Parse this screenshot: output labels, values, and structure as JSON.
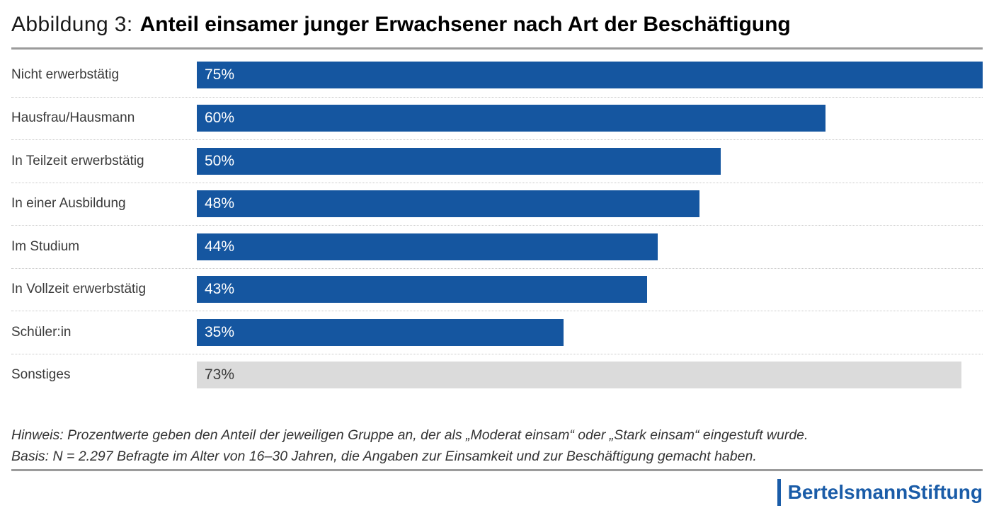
{
  "header": {
    "figure_label": "Abbildung 3:",
    "title": "Anteil einsamer junger Erwachsener nach Art der Beschäftigung"
  },
  "chart_data": {
    "type": "bar",
    "orientation": "horizontal",
    "title": "Anteil einsamer junger Erwachsener nach Art der Beschäftigung",
    "categories": [
      "Nicht erwerbstätig",
      "Hausfrau/Hausmann",
      "In Teilzeit erwerbstätig",
      "In einer Ausbildung",
      "Im Studium",
      "In Vollzeit erwerbstätig",
      "Schüler:in",
      "Sonstiges"
    ],
    "values": [
      75,
      60,
      50,
      48,
      44,
      43,
      35,
      73
    ],
    "value_labels": [
      "75%",
      "60%",
      "50%",
      "48%",
      "44%",
      "43%",
      "35%",
      "73%"
    ],
    "bar_variants": [
      "primary",
      "primary",
      "primary",
      "primary",
      "primary",
      "primary",
      "primary",
      "muted"
    ],
    "scale_max": 75,
    "xlim": [
      0,
      75
    ],
    "grid": false,
    "legend": "none",
    "colors": {
      "primary": "#1556a0",
      "muted": "#dbdbdb",
      "value_text_primary": "#ffffff",
      "value_text_muted": "#3c3c3c",
      "logo_blue": "#1a5ca8",
      "rule_gray": "#9b9b9b",
      "separator_gray": "#c9c9c9"
    }
  },
  "footnote": {
    "line1": "Hinweis: Prozentwerte geben den Anteil der jeweiligen Gruppe an, der als „Moderat einsam“ oder „Stark einsam“ eingestuft wurde.",
    "line2": "Basis: N = 2.297 Befragte im Alter von 16–30 Jahren, die Angaben zur Einsamkeit und zur Beschäftigung gemacht haben."
  },
  "logo": {
    "part1": "Bertelsmann",
    "part2": "Stiftung"
  }
}
